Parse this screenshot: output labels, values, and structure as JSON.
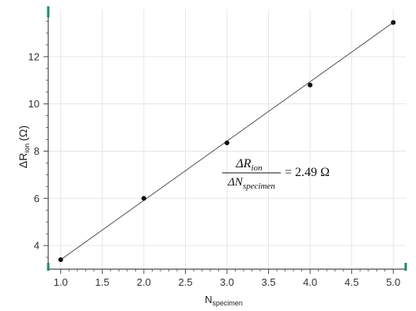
{
  "chart_data": {
    "type": "scatter",
    "x": [
      1.0,
      2.0,
      3.0,
      4.0,
      5.0
    ],
    "y": [
      3.4,
      6.0,
      8.35,
      10.8,
      13.45
    ],
    "fit_line": {
      "x": [
        1.0,
        5.0
      ],
      "y": [
        3.4,
        13.45
      ]
    },
    "xlabel": {
      "main": "N",
      "sub": "specimen"
    },
    "ylabel": {
      "main": "ΔR",
      "sub": "ion",
      "unit": "(Ω)"
    },
    "xlim": [
      0.85,
      5.15
    ],
    "ylim": [
      3.0,
      14.0
    ],
    "x_ticks": [
      "1.0",
      "1.5",
      "2.0",
      "2.5",
      "3.0",
      "3.5",
      "4.0",
      "4.5",
      "5.0"
    ],
    "y_ticks": [
      "4",
      "6",
      "8",
      "10",
      "12"
    ],
    "annotation": {
      "numerator": "ΔR",
      "numerator_sub": "ion",
      "denominator": "ΔN",
      "denominator_sub": "specimen",
      "result": "= 2.49 Ω"
    },
    "grid": true,
    "colors": {
      "points": "#111111",
      "line": "#555555",
      "grid": "#e6e6e6",
      "axis": "#4a4a4a",
      "corner_marks": "#1f8a70"
    }
  }
}
